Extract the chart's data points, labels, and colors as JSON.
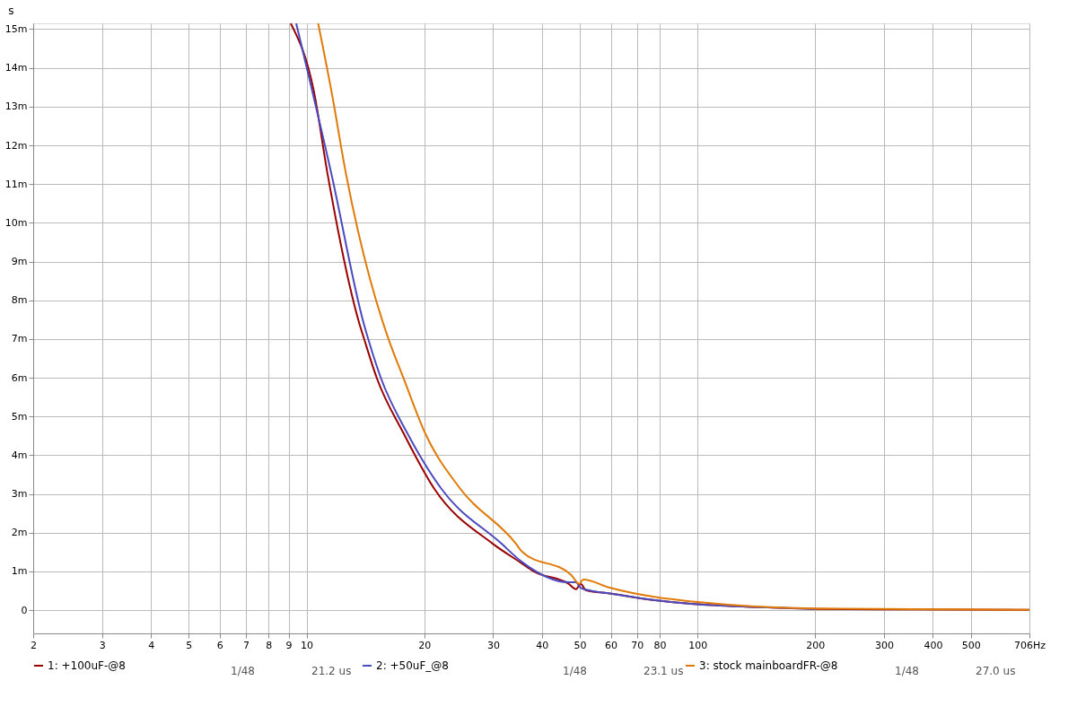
{
  "chart_data": {
    "type": "line",
    "ylabel": "s",
    "log": "x",
    "grid": true,
    "legend": "bottom",
    "line_style": "solid",
    "xlim": [
      2,
      706
    ],
    "ylim": [
      -0.6,
      15.15
    ],
    "xticks": [
      2,
      3,
      4,
      5,
      6,
      7,
      8,
      9,
      10,
      20,
      30,
      40,
      50,
      60,
      70,
      80,
      100,
      200,
      300,
      400,
      500,
      {
        "value": 706,
        "label": "706Hz"
      }
    ],
    "yticks": [
      0,
      {
        "value": 1,
        "label": "1m"
      },
      {
        "value": 2,
        "label": "2m"
      },
      {
        "value": 3,
        "label": "3m"
      },
      {
        "value": 4,
        "label": "4m"
      },
      {
        "value": 5,
        "label": "5m"
      },
      {
        "value": 6,
        "label": "6m"
      },
      {
        "value": 7,
        "label": "7m"
      },
      {
        "value": 8,
        "label": "8m"
      },
      {
        "value": 9,
        "label": "9m"
      },
      {
        "value": 10,
        "label": "10m"
      },
      {
        "value": 11,
        "label": "11m"
      },
      {
        "value": 12,
        "label": "12m"
      },
      {
        "value": 13,
        "label": "13m"
      },
      {
        "value": 14,
        "label": "14m"
      },
      {
        "value": 15,
        "label": "15m"
      }
    ],
    "series": [
      {
        "name": "1: +100uF-@8",
        "color": "#990000",
        "x": [
          9.11,
          10.44,
          11.32,
          13.64,
          14.05,
          15.13,
          17.7,
          21.2,
          29.9,
          35.5,
          38.1,
          46.8,
          48.9,
          50.2,
          51.9,
          59.6,
          78.8,
          100,
          151,
          200,
          300,
          706
        ],
        "values": [
          15.15,
          13.4,
          11.26,
          7.41,
          6.99,
          5.99,
          4.57,
          3.14,
          1.72,
          1.21,
          1.0,
          0.68,
          0.54,
          0.68,
          0.51,
          0.43,
          0.25,
          0.15,
          0.07,
          0.03,
          0.02,
          0.01
        ]
      },
      {
        "name": "2: +50uF_@8",
        "color": "#4b4bbf",
        "x": [
          9.41,
          11.58,
          14.0,
          14.39,
          15.5,
          18.1,
          22.1,
          31.5,
          35.5,
          46.8,
          48.9,
          50.2,
          52.9,
          59.6,
          78.8,
          100,
          151,
          200
        ],
        "values": [
          15.15,
          11.26,
          7.41,
          6.99,
          5.99,
          4.57,
          3.14,
          1.72,
          1.25,
          0.72,
          0.72,
          0.58,
          0.51,
          0.43,
          0.25,
          0.15,
          0.07,
          0.03
        ]
      },
      {
        "name": "3: stock mainboardFR-@8",
        "color": "#e07b0a",
        "x": [
          10.71,
          11.58,
          12.62,
          15.7,
          16.22,
          17.7,
          20.1,
          24.7,
          34.3,
          35.5,
          47.6,
          49.8,
          51.0,
          59.6,
          78.8,
          100,
          200,
          300,
          706
        ],
        "values": [
          15.15,
          13.4,
          11.26,
          7.41,
          6.99,
          5.99,
          4.57,
          3.14,
          1.72,
          1.52,
          0.9,
          0.68,
          0.79,
          0.58,
          0.33,
          0.21,
          0.04,
          0.03,
          0.01
        ]
      }
    ],
    "annotations": [
      "1/48",
      "21.2 us",
      "1/48",
      "23.1 us",
      "1/48",
      "27.0 us"
    ]
  }
}
